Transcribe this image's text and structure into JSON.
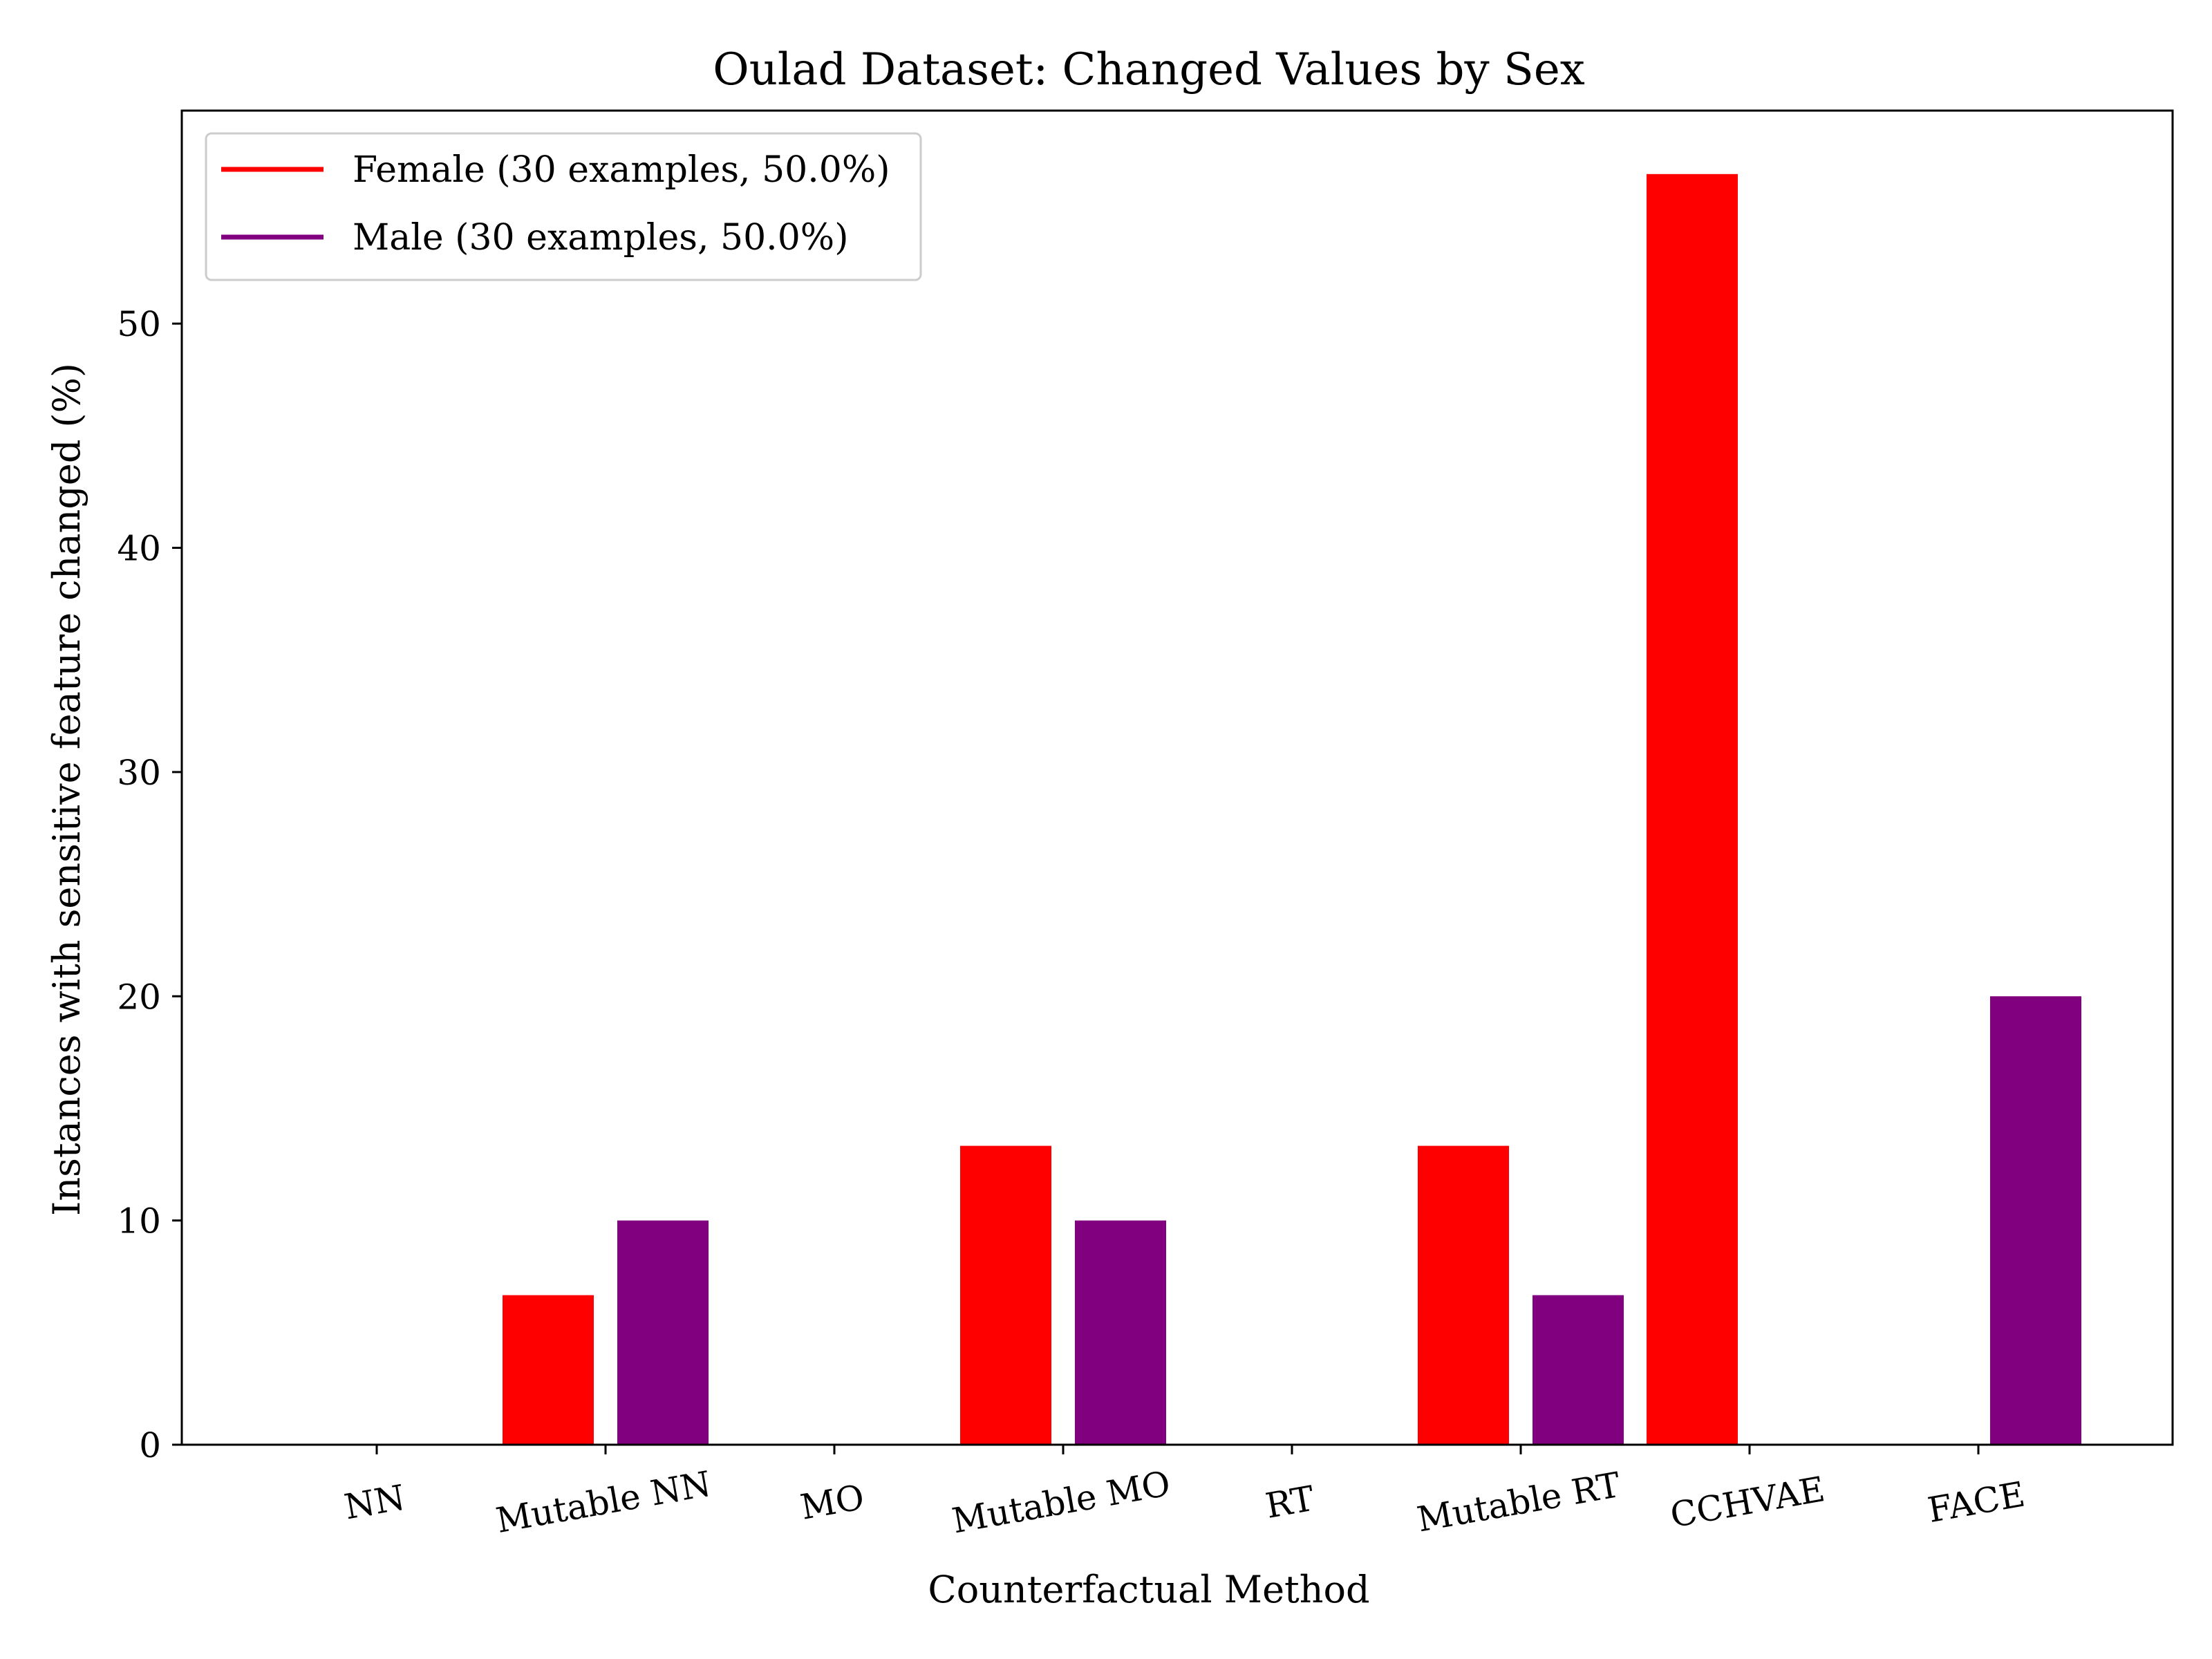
{
  "chart_data": {
    "type": "bar",
    "title": "Oulad Dataset: Changed Values by Sex",
    "xlabel": "Counterfactual Method",
    "ylabel": "Instances with sensitive feature changed (%)",
    "ylim": [
      0,
      59.5
    ],
    "yticks": [
      0,
      10,
      20,
      30,
      40,
      50
    ],
    "categories": [
      "NN",
      "Mutable NN",
      "MO",
      "Mutable MO",
      "RT",
      "Mutable RT",
      "CCHVAE",
      "FACE"
    ],
    "series": [
      {
        "name": "Female (30 examples, 50.0%)",
        "color": "#ff0000",
        "values": [
          0,
          6.67,
          0,
          13.33,
          0,
          13.33,
          56.67,
          0
        ]
      },
      {
        "name": "Male (30 examples, 50.0%)",
        "color": "#800080",
        "values": [
          0,
          10.0,
          0,
          10.0,
          0,
          6.67,
          0,
          20.0
        ]
      }
    ],
    "grid": false,
    "legend_position": "upper-left"
  }
}
